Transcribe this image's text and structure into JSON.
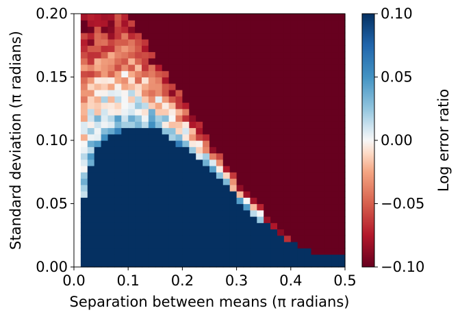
{
  "chart_data": {
    "type": "heatmap",
    "title": "",
    "xlabel": "Separation between means (π radians)",
    "ylabel": "Standard deviation (π radians)",
    "xlim": [
      0.0,
      0.5
    ],
    "ylim": [
      0.0,
      0.2
    ],
    "x_ticks": [
      "0.0",
      "0.1",
      "0.2",
      "0.3",
      "0.4",
      "0.5"
    ],
    "y_ticks": [
      "0.00",
      "0.05",
      "0.10",
      "0.15",
      "0.20"
    ],
    "colorbar": {
      "label": "Log error ratio",
      "range": [
        -0.1,
        0.1
      ],
      "ticks": [
        "−0.10",
        "−0.05",
        "0.00",
        "0.05",
        "0.10"
      ],
      "colormap": "RdBu",
      "low_color": "#67001f",
      "mid_color": "#f7f7f7",
      "high_color": "#053061"
    },
    "grid": false,
    "legend": "none",
    "regions": {
      "description_values": {
        "x_columns": 40,
        "y_rows": 40,
        "frontier_sigma_by_separation": [
          [
            0.09,
            0.2
          ],
          [
            0.1,
            0.2
          ],
          [
            0.15,
            0.165
          ],
          [
            0.2,
            0.135
          ],
          [
            0.25,
            0.1
          ],
          [
            0.3,
            0.07
          ],
          [
            0.35,
            0.045
          ],
          [
            0.4,
            0.02
          ],
          [
            0.45,
            0.01
          ],
          [
            0.5,
            0.01
          ]
        ],
        "blue_top_by_separation": [
          [
            0.0125,
            0.0
          ],
          [
            0.02,
            0.065
          ],
          [
            0.05,
            0.1
          ],
          [
            0.1,
            0.11
          ],
          [
            0.15,
            0.11
          ],
          [
            0.2,
            0.095
          ],
          [
            0.25,
            0.08
          ],
          [
            0.3,
            0.055
          ],
          [
            0.35,
            0.035
          ],
          [
            0.4,
            0.02
          ],
          [
            0.45,
            0.01
          ],
          [
            0.5,
            0.01
          ]
        ],
        "low_separation_noisy_band": [
          0.0,
          0.0125
        ],
        "upper_left_value_range": [
          -0.08,
          0.0
        ],
        "saturated_low_value": -0.1,
        "saturated_high_value": 0.1
      }
    }
  }
}
